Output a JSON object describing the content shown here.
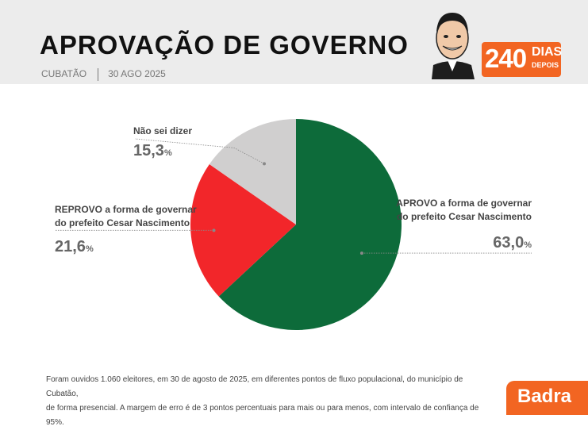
{
  "header": {
    "title": "APROVAÇÃO DE GOVERNO",
    "city": "CUBATÃO",
    "date": "30 AGO 2025",
    "badge_number": "240",
    "badge_word1": "DIAS",
    "badge_word2": "DEPOIS"
  },
  "chart_data": {
    "type": "pie",
    "slices": [
      {
        "label_line1": "APROVO a forma de governar",
        "label_line2": "do prefeito Cesar Nascimento",
        "value": 63.0,
        "display": "63,0",
        "color": "#0d6b3a"
      },
      {
        "label_line1": "REPROVO a forma de governar",
        "label_line2": "do prefeito Cesar Nascimento",
        "value": 21.6,
        "display": "21,6",
        "color": "#f2262a"
      },
      {
        "label_line1": "Não sei dizer",
        "label_line2": "",
        "value": 15.3,
        "display": "15,3",
        "color": "#d0cfcf"
      }
    ],
    "unit": "%"
  },
  "footnote": {
    "line1": "Foram ouvidos 1.060 eleitores, em 30 de agosto de 2025, em diferentes pontos de fluxo populacional, do município de Cubatão,",
    "line2": "de forma presencial. A margem de erro é de 3 pontos percentuais para mais ou para menos, com intervalo de confiança de 95%."
  },
  "brand": {
    "logo": "Badra",
    "accent": "#f26522"
  }
}
